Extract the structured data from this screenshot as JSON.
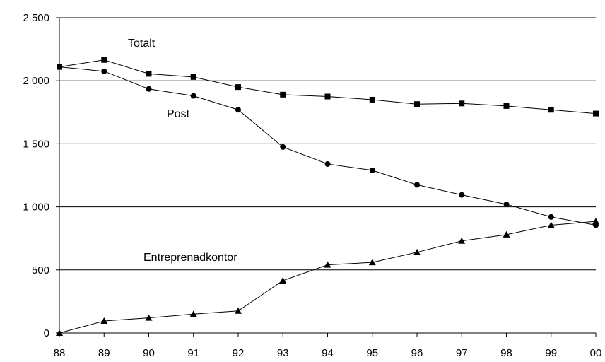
{
  "chart_data": {
    "type": "line",
    "categories": [
      "88",
      "89",
      "90",
      "91",
      "92",
      "93",
      "94",
      "95",
      "96",
      "97",
      "98",
      "99",
      "00"
    ],
    "ylim": [
      0,
      2500
    ],
    "yticks": [
      0,
      500,
      1000,
      1500,
      2000,
      2500
    ],
    "ytick_labels": [
      "0",
      "500",
      "1 000",
      "1 500",
      "2 000",
      "2 500"
    ],
    "grid": true,
    "legend": "none (series labelled inline)",
    "series": [
      {
        "name": "Totalt",
        "marker": "square",
        "values": [
          2110,
          2165,
          2055,
          2030,
          1950,
          1890,
          1875,
          1850,
          1815,
          1820,
          1800,
          1770,
          1740
        ]
      },
      {
        "name": "Post",
        "marker": "circle",
        "values": [
          2110,
          2075,
          1935,
          1880,
          1770,
          1475,
          1340,
          1290,
          1175,
          1095,
          1020,
          920,
          855
        ]
      },
      {
        "name": "Entreprenadkontor",
        "marker": "triangle",
        "values": [
          0,
          95,
          120,
          150,
          175,
          415,
          540,
          560,
          640,
          730,
          780,
          855,
          885
        ]
      }
    ]
  }
}
